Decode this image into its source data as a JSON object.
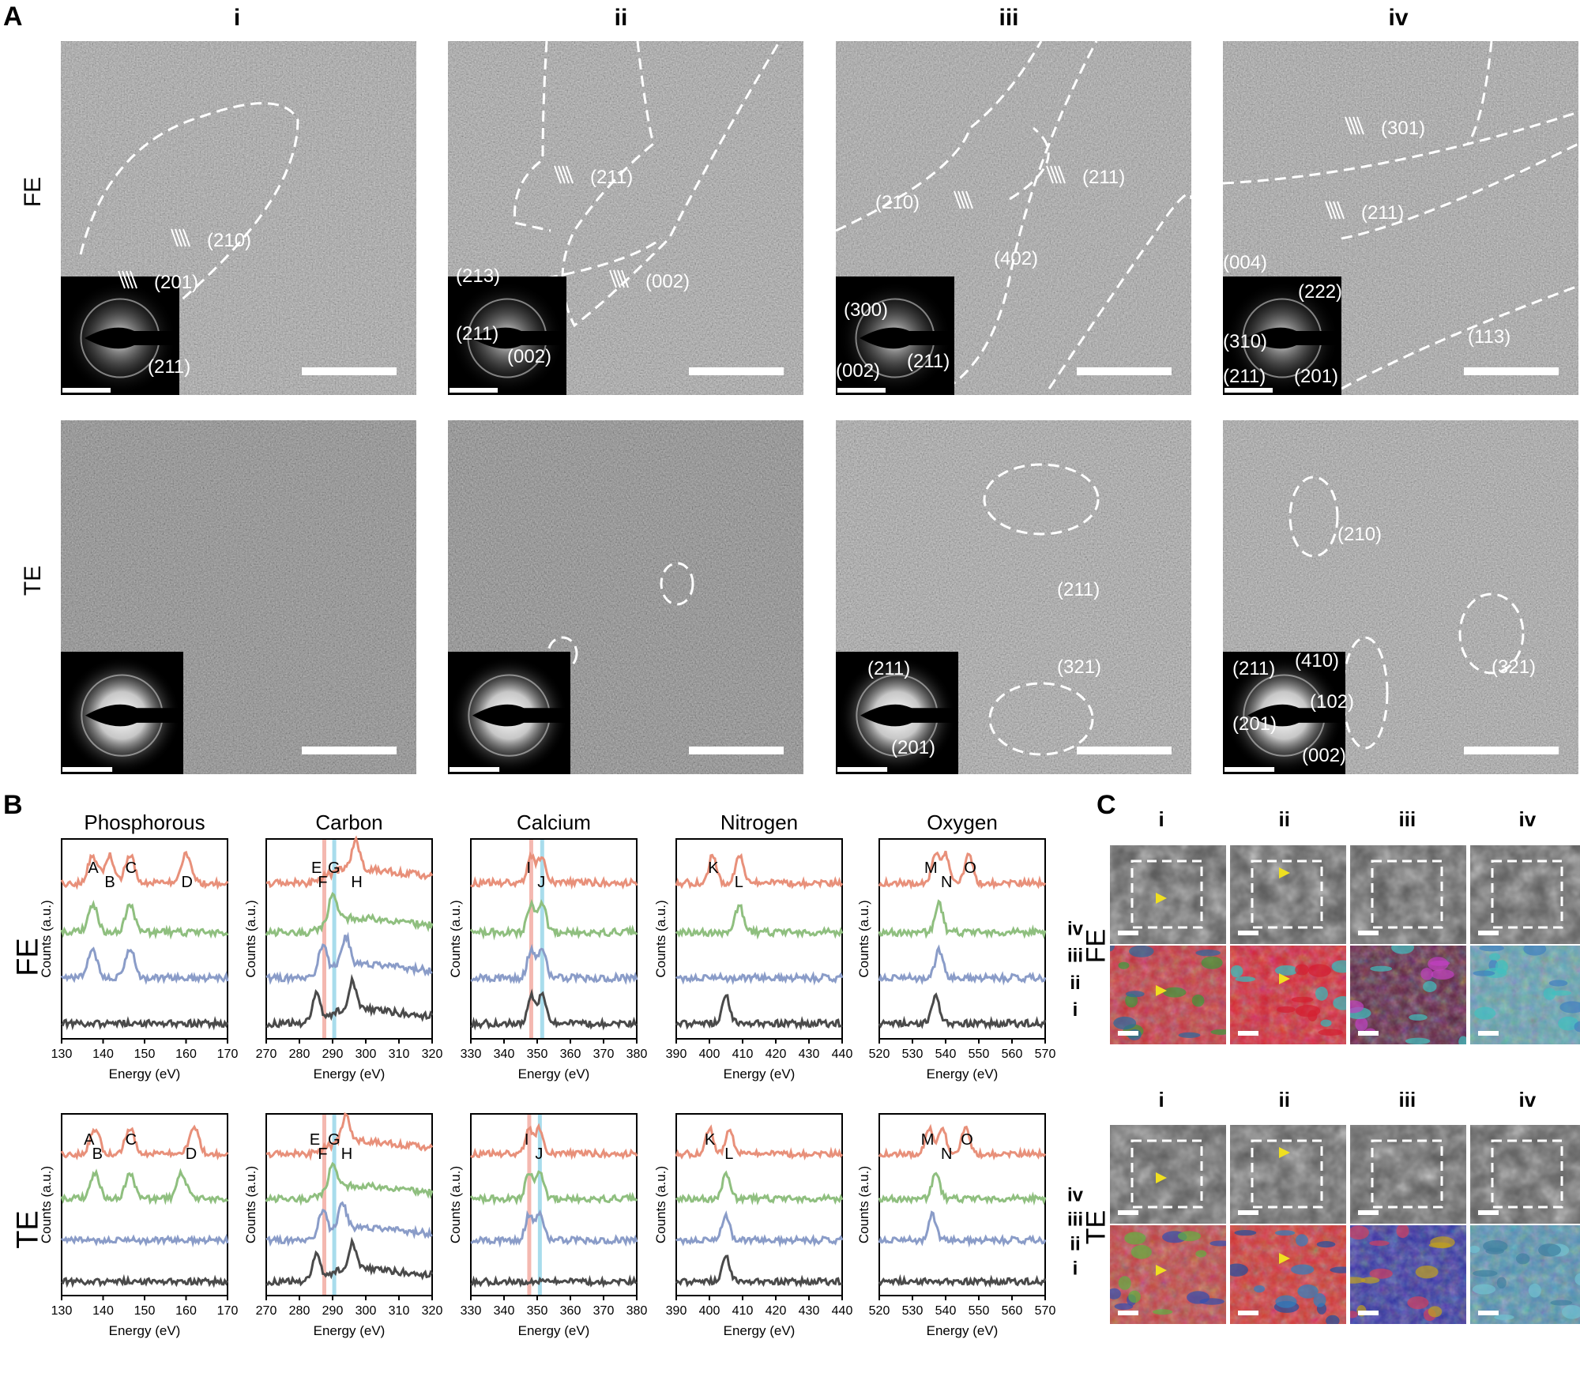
{
  "panels": {
    "a": "A",
    "b": "B",
    "c": "C"
  },
  "columns": [
    "i",
    "ii",
    "iii",
    "iv"
  ],
  "rows": [
    "FE",
    "TE"
  ],
  "panel_a": {
    "fe": [
      {
        "planes": [
          "(210)",
          "(201)",
          "(211)"
        ]
      },
      {
        "planes": [
          "(211)",
          "(002)",
          "(213)",
          "(211)",
          "(002)"
        ]
      },
      {
        "planes": [
          "(210)",
          "(211)",
          "(402)",
          "(300)",
          "(211)",
          "(002)"
        ]
      },
      {
        "planes": [
          "(301)",
          "(211)",
          "(113)",
          "(004)",
          "(222)",
          "(310)",
          "(211)",
          "(201)"
        ]
      }
    ],
    "te": [
      {
        "planes": []
      },
      {
        "planes": []
      },
      {
        "planes": [
          "(211)",
          "(321)",
          "(211)",
          "(201)"
        ]
      },
      {
        "planes": [
          "(210)",
          "(321)",
          "(211)",
          "(410)",
          "(102)",
          "(201)",
          "(002)"
        ]
      }
    ]
  },
  "panel_b": {
    "ylabel": "Counts (a.u.)",
    "xlabel": "Energy (eV)",
    "series_labels": [
      "iv",
      "iii",
      "ii",
      "i"
    ],
    "colors": {
      "iv": "#e8907a",
      "iii": "#8fbf7f",
      "ii": "#8a9cc8",
      "i": "#4a4a4a",
      "band_red": "#f4b8b0",
      "band_blue": "#a8dcec"
    }
  },
  "chart_data": [
    {
      "type": "line",
      "title": "Phosphorous",
      "row": "FE",
      "xlabel": "Energy (eV)",
      "ylabel": "Counts (a.u.)",
      "xlim": [
        130,
        170
      ],
      "xticks": [
        130,
        140,
        150,
        160,
        170
      ],
      "annotations": [
        {
          "text": "A",
          "x": 137.5
        },
        {
          "text": "B",
          "x": 141.5
        },
        {
          "text": "C",
          "x": 146.5
        },
        {
          "text": "D",
          "x": 160
        }
      ],
      "series": [
        {
          "name": "iv",
          "peaks": [
            137.5,
            141.5,
            146.5,
            160
          ]
        },
        {
          "name": "iii",
          "peaks": [
            137.5,
            146.5
          ]
        },
        {
          "name": "ii",
          "peaks": [
            137.5,
            146.5
          ]
        },
        {
          "name": "i",
          "peaks": []
        }
      ]
    },
    {
      "type": "line",
      "title": "Carbon",
      "row": "FE",
      "xlabel": "Energy (eV)",
      "ylabel": "Counts (a.u.)",
      "xlim": [
        270,
        320
      ],
      "xticks": [
        270,
        280,
        290,
        300,
        310,
        320
      ],
      "bands": [
        287.5,
        290.5
      ],
      "annotations": [
        {
          "text": "E",
          "x": 285
        },
        {
          "text": "F",
          "x": 287
        },
        {
          "text": "G",
          "x": 290
        },
        {
          "text": "H",
          "x": 297
        }
      ],
      "series": [
        {
          "name": "iv",
          "peaks": [
            297
          ]
        },
        {
          "name": "iii",
          "peaks": [
            290
          ]
        },
        {
          "name": "ii",
          "peaks": [
            287,
            294
          ]
        },
        {
          "name": "i",
          "peaks": [
            285,
            296
          ]
        }
      ]
    },
    {
      "type": "line",
      "title": "Calcium",
      "row": "FE",
      "xlabel": "Energy (eV)",
      "ylabel": "Counts (a.u.)",
      "xlim": [
        330,
        380
      ],
      "xticks": [
        330,
        340,
        350,
        360,
        370,
        380
      ],
      "bands": [
        348.2,
        351.5
      ],
      "annotations": [
        {
          "text": "I",
          "x": 348.2
        },
        {
          "text": "J",
          "x": 351.5
        }
      ],
      "series": [
        {
          "name": "iv",
          "peaks": [
            348.2,
            351.5
          ]
        },
        {
          "name": "iii",
          "peaks": [
            348.2,
            351.5
          ]
        },
        {
          "name": "ii",
          "peaks": [
            348.2,
            351.5
          ]
        },
        {
          "name": "i",
          "peaks": [
            348.2,
            351.5
          ]
        }
      ]
    },
    {
      "type": "line",
      "title": "Nitrogen",
      "row": "FE",
      "xlabel": "Energy (eV)",
      "ylabel": "Counts (a.u.)",
      "xlim": [
        390,
        440
      ],
      "xticks": [
        390,
        400,
        410,
        420,
        430,
        440
      ],
      "annotations": [
        {
          "text": "K",
          "x": 401
        },
        {
          "text": "L",
          "x": 409
        }
      ],
      "series": [
        {
          "name": "iv",
          "peaks": [
            401,
            409
          ]
        },
        {
          "name": "iii",
          "peaks": [
            409
          ]
        },
        {
          "name": "ii",
          "peaks": []
        },
        {
          "name": "i",
          "peaks": [
            405
          ]
        }
      ]
    },
    {
      "type": "line",
      "title": "Oxygen",
      "row": "FE",
      "xlabel": "Energy (eV)",
      "ylabel": "Counts (a.u.)",
      "xlim": [
        520,
        570
      ],
      "xticks": [
        520,
        530,
        540,
        550,
        560,
        570
      ],
      "annotations": [
        {
          "text": "M",
          "x": 535
        },
        {
          "text": "N",
          "x": 540
        },
        {
          "text": "O",
          "x": 547
        }
      ],
      "series": [
        {
          "name": "iv",
          "peaks": [
            537,
            540,
            547
          ]
        },
        {
          "name": "iii",
          "peaks": [
            538
          ]
        },
        {
          "name": "ii",
          "peaks": [
            538
          ]
        },
        {
          "name": "i",
          "peaks": [
            537
          ]
        }
      ]
    },
    {
      "type": "line",
      "title": "",
      "row": "TE",
      "xlabel": "Energy (eV)",
      "ylabel": "Counts (a.u.)",
      "xlim": [
        130,
        170
      ],
      "xticks": [
        130,
        140,
        150,
        160,
        170
      ],
      "annotations": [
        {
          "text": "A",
          "x": 136.5
        },
        {
          "text": "B",
          "x": 138.5
        },
        {
          "text": "C",
          "x": 146.5
        },
        {
          "text": "D",
          "x": 161
        }
      ],
      "series": [
        {
          "name": "iv",
          "peaks": [
            138,
            146.5,
            162
          ]
        },
        {
          "name": "iii",
          "peaks": [
            138,
            146.5,
            159
          ]
        },
        {
          "name": "ii",
          "peaks": []
        },
        {
          "name": "i",
          "peaks": []
        }
      ]
    },
    {
      "type": "line",
      "title": "",
      "row": "TE",
      "xlabel": "Energy (eV)",
      "ylabel": "Counts (a.u.)",
      "xlim": [
        270,
        320
      ],
      "xticks": [
        270,
        280,
        290,
        300,
        310,
        320
      ],
      "bands": [
        287.5,
        290.5
      ],
      "annotations": [
        {
          "text": "E",
          "x": 284.5
        },
        {
          "text": "F",
          "x": 287
        },
        {
          "text": "G",
          "x": 290
        },
        {
          "text": "H",
          "x": 294
        }
      ],
      "series": [
        {
          "name": "iv",
          "peaks": [
            294
          ]
        },
        {
          "name": "iii",
          "peaks": [
            290
          ]
        },
        {
          "name": "ii",
          "peaks": [
            287,
            293
          ]
        },
        {
          "name": "i",
          "peaks": [
            285,
            296
          ]
        }
      ]
    },
    {
      "type": "line",
      "title": "",
      "row": "TE",
      "xlabel": "Energy (eV)",
      "ylabel": "Counts (a.u.)",
      "xlim": [
        330,
        380
      ],
      "xticks": [
        330,
        340,
        350,
        360,
        370,
        380
      ],
      "bands": [
        347.6,
        350.8
      ],
      "annotations": [
        {
          "text": "I",
          "x": 347.6
        },
        {
          "text": "J",
          "x": 350.8
        }
      ],
      "series": [
        {
          "name": "iv",
          "peaks": [
            347.6,
            350.8
          ]
        },
        {
          "name": "iii",
          "peaks": [
            347.6,
            350.8
          ]
        },
        {
          "name": "ii",
          "peaks": [
            347.6,
            350.8
          ]
        },
        {
          "name": "i",
          "peaks": []
        }
      ]
    },
    {
      "type": "line",
      "title": "",
      "row": "TE",
      "xlabel": "Energy (eV)",
      "ylabel": "Counts (a.u.)",
      "xlim": [
        390,
        440
      ],
      "xticks": [
        390,
        400,
        410,
        420,
        430,
        440
      ],
      "annotations": [
        {
          "text": "K",
          "x": 400
        },
        {
          "text": "L",
          "x": 406
        }
      ],
      "series": [
        {
          "name": "iv",
          "peaks": [
            400,
            406
          ]
        },
        {
          "name": "iii",
          "peaks": [
            405
          ]
        },
        {
          "name": "ii",
          "peaks": [
            405
          ]
        },
        {
          "name": "i",
          "peaks": [
            405
          ]
        }
      ]
    },
    {
      "type": "line",
      "title": "",
      "row": "TE",
      "xlabel": "Energy (eV)",
      "ylabel": "Counts (a.u.)",
      "xlim": [
        520,
        570
      ],
      "xticks": [
        520,
        530,
        540,
        550,
        560,
        570
      ],
      "annotations": [
        {
          "text": "M",
          "x": 534
        },
        {
          "text": "N",
          "x": 540
        },
        {
          "text": "O",
          "x": 546
        }
      ],
      "series": [
        {
          "name": "iv",
          "peaks": [
            535,
            539,
            546
          ]
        },
        {
          "name": "iii",
          "peaks": [
            537
          ]
        },
        {
          "name": "ii",
          "peaks": [
            536
          ]
        },
        {
          "name": "i",
          "peaks": []
        }
      ]
    }
  ]
}
